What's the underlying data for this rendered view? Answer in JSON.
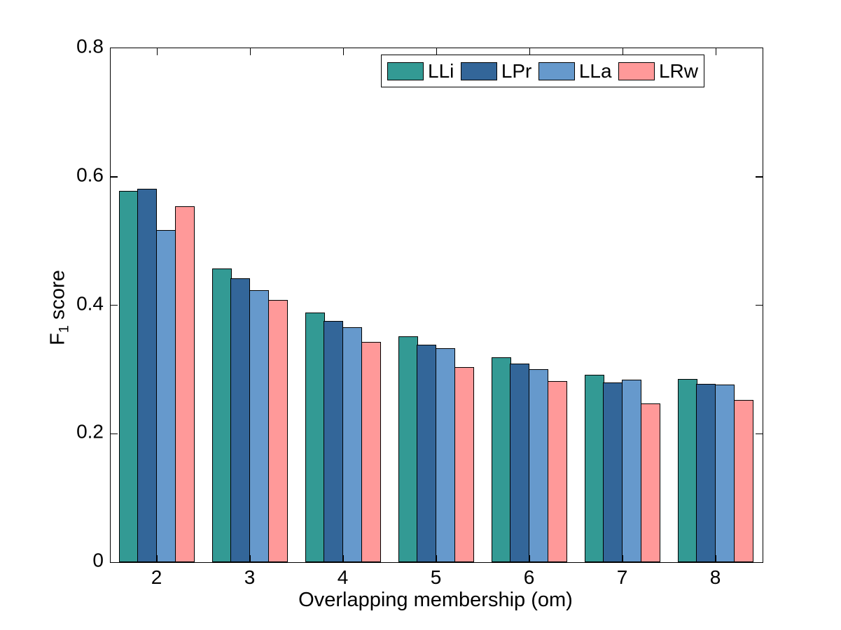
{
  "figure": {
    "background": "#ffffff",
    "axis_color": "#000000"
  },
  "chart_data": {
    "type": "bar",
    "title": "",
    "xlabel": "Overlapping membership (om)",
    "ylabel": {
      "prefix": "F",
      "sub": "1",
      "suffix": " score"
    },
    "categories": [
      "2",
      "3",
      "4",
      "5",
      "6",
      "7",
      "8"
    ],
    "yticks": [
      "0",
      "0.2",
      "0.4",
      "0.6",
      "0.8"
    ],
    "ylim": [
      0,
      0.8
    ],
    "grid": false,
    "legend_position": "top-inside",
    "bar_edge_color": "#000000",
    "series": [
      {
        "name": "LLi",
        "color": "#339A94",
        "values": [
          0.578,
          0.457,
          0.389,
          0.352,
          0.319,
          0.292,
          0.285
        ]
      },
      {
        "name": "LPr",
        "color": "#336699",
        "values": [
          0.581,
          0.442,
          0.375,
          0.339,
          0.309,
          0.28,
          0.278
        ]
      },
      {
        "name": "LLa",
        "color": "#6699CC",
        "values": [
          0.517,
          0.423,
          0.366,
          0.333,
          0.3,
          0.284,
          0.276
        ]
      },
      {
        "name": "LRw",
        "color": "#FF9999",
        "values": [
          0.554,
          0.408,
          0.343,
          0.304,
          0.282,
          0.247,
          0.252
        ]
      }
    ]
  }
}
